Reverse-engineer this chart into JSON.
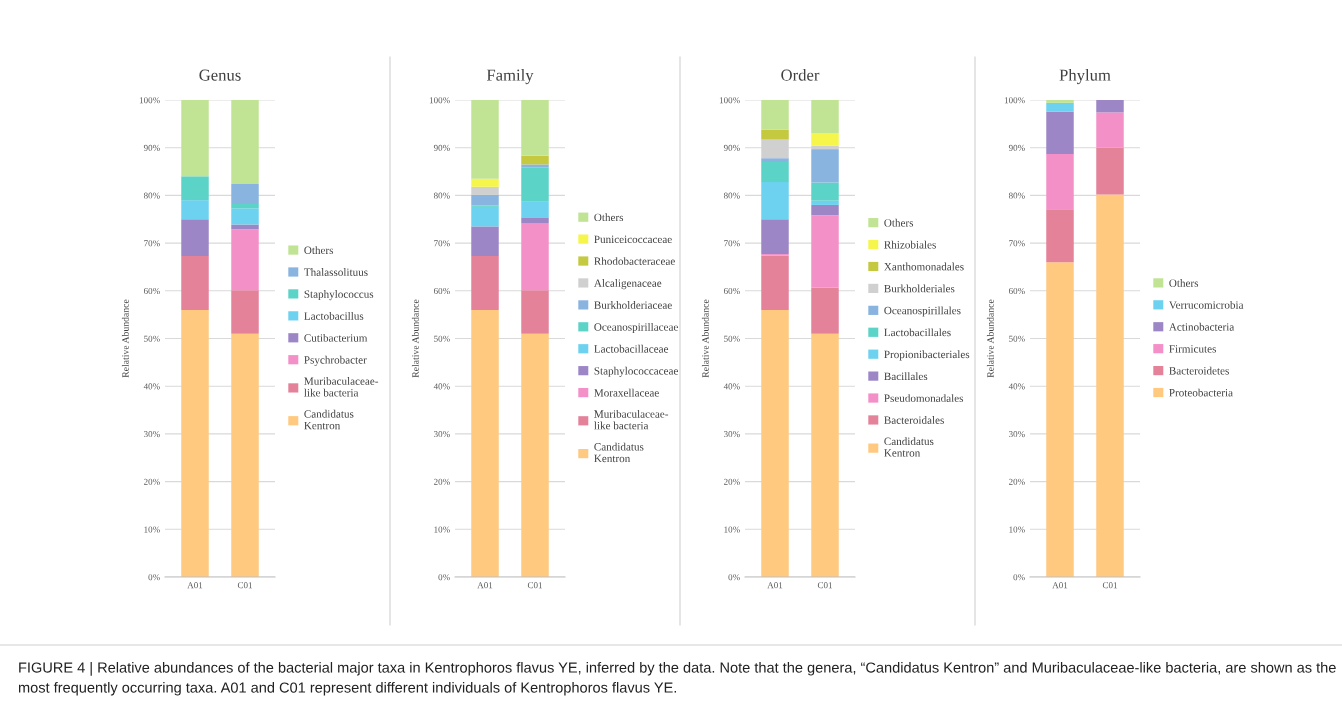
{
  "chart_data": [
    {
      "type": "bar",
      "stacked": true,
      "title": "Genus",
      "ylabel": "Relative Abundance",
      "categories": [
        "A01",
        "C01"
      ],
      "ylim": [
        0,
        100
      ],
      "yticks": [
        {
          "value": 0,
          "label": "0%"
        },
        {
          "value": 10,
          "label": "10%"
        },
        {
          "value": 20,
          "label": "20%"
        },
        {
          "value": 30,
          "label": "30%"
        },
        {
          "value": 40,
          "label": "40%"
        },
        {
          "value": 50,
          "label": "50%"
        },
        {
          "value": 60,
          "label": "60%"
        },
        {
          "value": 70,
          "label": "70%"
        },
        {
          "value": 80,
          "label": "80%"
        },
        {
          "value": 90,
          "label": "90%"
        },
        {
          "value": 100,
          "label": "100%"
        }
      ],
      "grid": "y",
      "legend": "right",
      "annotations": [
        "FIGURE 4 | Relative abundances of the bacterial major taxa in Kentrophoros flavus YE, inferred by the data. Note that the genera, “Candidatus Kentron” and Muribaculaceae-like bacteria, are shown as the most frequently occurring taxa. A01 and C01 represent different individuals of Kentrophoros flavus YE."
      ],
      "series": [
        {
          "name": "Candidatus\nKentron",
          "color": "#ffc97f",
          "values": [
            56,
            51
          ]
        },
        {
          "name": "Muribaculaceae-\nlike bacteria",
          "color": "#e4829a",
          "values": [
            11.3,
            9.1
          ]
        },
        {
          "name": "Psychrobacter",
          "color": "#f490c8",
          "values": [
            0,
            12.8
          ]
        },
        {
          "name": "Cutibacterium",
          "color": "#9d86c6",
          "values": [
            7.7,
            1
          ]
        },
        {
          "name": "Lactobacillus",
          "color": "#6dd2ef",
          "values": [
            4,
            3.4
          ]
        },
        {
          "name": "Staphylococcus",
          "color": "#5bd3c7",
          "values": [
            5,
            0.9
          ]
        },
        {
          "name": "Thalassolituus",
          "color": "#8ab4e0",
          "values": [
            0,
            4.2
          ]
        },
        {
          "name": "Others",
          "color": "#c0e394",
          "values": [
            16,
            17.6
          ]
        }
      ]
    },
    {
      "type": "bar",
      "stacked": true,
      "title": "Family",
      "ylabel": "Relative Abundance",
      "categories": [
        "A01",
        "C01"
      ],
      "ylim": [
        0,
        100
      ],
      "yticks": [
        {
          "value": 0,
          "label": "0%"
        },
        {
          "value": 10,
          "label": "10%"
        },
        {
          "value": 20,
          "label": "20%"
        },
        {
          "value": 30,
          "label": "30%"
        },
        {
          "value": 40,
          "label": "40%"
        },
        {
          "value": 50,
          "label": "50%"
        },
        {
          "value": 60,
          "label": "60%"
        },
        {
          "value": 70,
          "label": "70%"
        },
        {
          "value": 80,
          "label": "80%"
        },
        {
          "value": 90,
          "label": "90%"
        },
        {
          "value": 100,
          "label": "100%"
        }
      ],
      "grid": "y",
      "legend": "right",
      "series": [
        {
          "name": "Candidatus\nKentron",
          "color": "#ffc97f",
          "values": [
            56,
            51
          ]
        },
        {
          "name": "Muribaculaceae-\nlike bacteria",
          "color": "#e4829a",
          "values": [
            11.3,
            9.1
          ]
        },
        {
          "name": "Moraxellaceae",
          "color": "#f490c8",
          "values": [
            0,
            14
          ]
        },
        {
          "name": "Staphylococcaceae",
          "color": "#9d86c6",
          "values": [
            6.2,
            1.3
          ]
        },
        {
          "name": "Lactobacillaceae",
          "color": "#6dd2ef",
          "values": [
            4.1,
            3.4
          ]
        },
        {
          "name": "Oceanospirillaceae",
          "color": "#5bd3c7",
          "values": [
            0.3,
            7
          ]
        },
        {
          "name": "Burkholderiaceae",
          "color": "#8ab4e0",
          "values": [
            2.2,
            0.7
          ]
        },
        {
          "name": "Alcaligenaceae",
          "color": "#d0d0d0",
          "values": [
            1.7,
            0
          ]
        },
        {
          "name": "Rhodobacteraceae",
          "color": "#c4c940",
          "values": [
            0,
            1.8
          ]
        },
        {
          "name": "Puniceicoccaceae",
          "color": "#f5f54c",
          "values": [
            1.7,
            0
          ]
        },
        {
          "name": "Others",
          "color": "#c0e394",
          "values": [
            16.5,
            11.7
          ]
        }
      ]
    },
    {
      "type": "bar",
      "stacked": true,
      "title": "Order",
      "ylabel": "Relative Abundance",
      "categories": [
        "A01",
        "C01"
      ],
      "ylim": [
        0,
        100
      ],
      "yticks": [
        {
          "value": 0,
          "label": "0%"
        },
        {
          "value": 10,
          "label": "10%"
        },
        {
          "value": 20,
          "label": "20%"
        },
        {
          "value": 30,
          "label": "30%"
        },
        {
          "value": 40,
          "label": "40%"
        },
        {
          "value": 50,
          "label": "50%"
        },
        {
          "value": 60,
          "label": "60%"
        },
        {
          "value": 70,
          "label": "70%"
        },
        {
          "value": 80,
          "label": "80%"
        },
        {
          "value": 90,
          "label": "90%"
        },
        {
          "value": 100,
          "label": "100%"
        }
      ],
      "grid": "y",
      "legend": "right",
      "series": [
        {
          "name": "Candidatus\nKentron",
          "color": "#ffc97f",
          "values": [
            56,
            51
          ]
        },
        {
          "name": "Bacteroidales",
          "color": "#e4829a",
          "values": [
            11.4,
            9.7
          ]
        },
        {
          "name": "Pseudomonadales",
          "color": "#f490c8",
          "values": [
            0.3,
            15.1
          ]
        },
        {
          "name": "Bacillales",
          "color": "#9d86c6",
          "values": [
            7.3,
            2.2
          ]
        },
        {
          "name": "Propionibacteriales",
          "color": "#6dd2ef",
          "values": [
            7.8,
            0.9
          ]
        },
        {
          "name": "Lactobacillales",
          "color": "#5bd3c7",
          "values": [
            4.2,
            3.8
          ]
        },
        {
          "name": "Oceanospirillales",
          "color": "#8ab4e0",
          "values": [
            0.8,
            7
          ]
        },
        {
          "name": "Burkholderiales",
          "color": "#d0d0d0",
          "values": [
            3.9,
            0.7
          ]
        },
        {
          "name": "Xanthomonadales",
          "color": "#c4c940",
          "values": [
            2.1,
            0
          ]
        },
        {
          "name": "Rhizobiales",
          "color": "#f5f54c",
          "values": [
            0,
            2.6
          ]
        },
        {
          "name": "Others",
          "color": "#c0e394",
          "values": [
            6.2,
            7
          ]
        }
      ]
    },
    {
      "type": "bar",
      "stacked": true,
      "title": "Phylum",
      "ylabel": "Relative Abundance",
      "categories": [
        "A01",
        "C01"
      ],
      "ylim": [
        0,
        100
      ],
      "yticks": [
        {
          "value": 0,
          "label": "0%"
        },
        {
          "value": 10,
          "label": "10%"
        },
        {
          "value": 20,
          "label": "20%"
        },
        {
          "value": 30,
          "label": "30%"
        },
        {
          "value": 40,
          "label": "40%"
        },
        {
          "value": 50,
          "label": "50%"
        },
        {
          "value": 60,
          "label": "60%"
        },
        {
          "value": 70,
          "label": "70%"
        },
        {
          "value": 80,
          "label": "80%"
        },
        {
          "value": 90,
          "label": "90%"
        },
        {
          "value": 100,
          "label": "100%"
        }
      ],
      "grid": "y",
      "legend": "right",
      "series": [
        {
          "name": "Proteobacteria",
          "color": "#ffc97f",
          "values": [
            66,
            80.2
          ]
        },
        {
          "name": "Bacteroidetes",
          "color": "#e4829a",
          "values": [
            11.1,
            9.8
          ]
        },
        {
          "name": "Firmicutes",
          "color": "#f490c8",
          "values": [
            11.6,
            7.4
          ]
        },
        {
          "name": "Actinobacteria",
          "color": "#9d86c6",
          "values": [
            8.9,
            2.6
          ]
        },
        {
          "name": "Verrucomicrobia",
          "color": "#6dd2ef",
          "values": [
            1.8,
            0
          ]
        },
        {
          "name": "Others",
          "color": "#c0e394",
          "values": [
            0.6,
            0
          ]
        }
      ]
    }
  ]
}
